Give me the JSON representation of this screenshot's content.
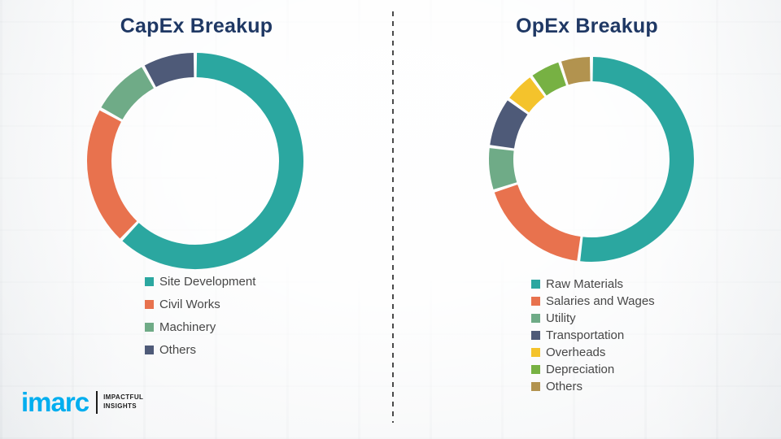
{
  "styles": {
    "title_color": "#1F3864",
    "legend_text_color": "#474747",
    "divider_color": "#4A4A4A",
    "logo_brand_color": "#00AEEF",
    "background": "#FFFFFF"
  },
  "logo": {
    "brand": "imarc",
    "tagline_line1": "IMPACTFUL",
    "tagline_line2": "INSIGHTS"
  },
  "chart_data": [
    {
      "type": "pie",
      "subtype": "donut",
      "title": "CapEx Breakup",
      "labels": [
        "Site Development",
        "Civil Works",
        "Machinery",
        "Others"
      ],
      "values": [
        62,
        21,
        9,
        8
      ],
      "colors": [
        "#2BA7A0",
        "#E8724E",
        "#6FAB87",
        "#4E5A78"
      ],
      "start_angle_deg": -90,
      "direction": "clockwise",
      "legend_position": "bottom-left",
      "data_labels": false
    },
    {
      "type": "pie",
      "subtype": "donut",
      "title": "OpEx Breakup",
      "labels": [
        "Raw Materials",
        "Salaries and Wages",
        "Utility",
        "Transportation",
        "Overheads",
        "Depreciation",
        "Others"
      ],
      "values": [
        52,
        18,
        7,
        8,
        5,
        5,
        5
      ],
      "colors": [
        "#2BA7A0",
        "#E8724E",
        "#6FAB87",
        "#4E5A78",
        "#F4C32C",
        "#77B143",
        "#B2934F"
      ],
      "start_angle_deg": -90,
      "direction": "clockwise",
      "legend_position": "bottom-left",
      "data_labels": false
    }
  ]
}
